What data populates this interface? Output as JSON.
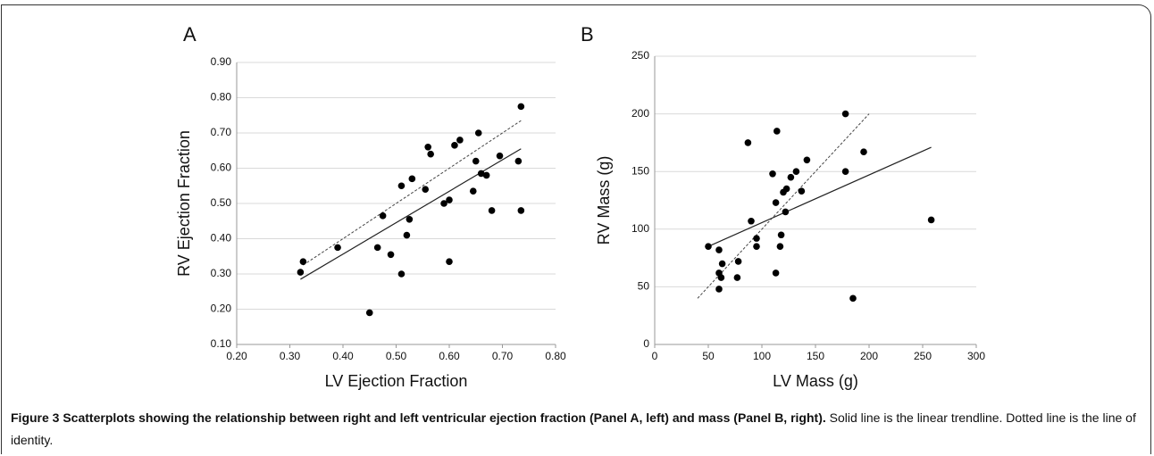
{
  "chart_data": [
    {
      "type": "scatter",
      "title": "A",
      "x_label": "LV Ejection Fraction",
      "y_label": "RV Ejection Fraction",
      "color": "#000000",
      "grid": true,
      "x": [
        0.32,
        0.325,
        0.39,
        0.45,
        0.465,
        0.475,
        0.49,
        0.51,
        0.51,
        0.52,
        0.525,
        0.53,
        0.555,
        0.56,
        0.565,
        0.59,
        0.6,
        0.6,
        0.61,
        0.62,
        0.645,
        0.65,
        0.655,
        0.66,
        0.67,
        0.68,
        0.695,
        0.73,
        0.735,
        0.735
      ],
      "y": [
        0.305,
        0.335,
        0.375,
        0.19,
        0.375,
        0.465,
        0.355,
        0.55,
        0.3,
        0.41,
        0.455,
        0.57,
        0.54,
        0.66,
        0.64,
        0.5,
        0.51,
        0.335,
        0.665,
        0.68,
        0.535,
        0.62,
        0.7,
        0.585,
        0.58,
        0.48,
        0.635,
        0.62,
        0.775,
        0.48
      ],
      "lines": [
        {
          "style": "solid",
          "x": [
            0.32,
            0.735
          ],
          "y": [
            0.285,
            0.655
          ]
        },
        {
          "style": "dotted",
          "x": [
            0.325,
            0.735
          ],
          "y": [
            0.325,
            0.735
          ]
        }
      ],
      "xlim": [
        0.2,
        0.8
      ],
      "xticks": [
        {
          "value": 0.2,
          "label": "0.20"
        },
        {
          "value": 0.3,
          "label": "0.30"
        },
        {
          "value": 0.4,
          "label": "0.40"
        },
        {
          "value": 0.5,
          "label": "0.50"
        },
        {
          "value": 0.6,
          "label": "0.60"
        },
        {
          "value": 0.7,
          "label": "0.70"
        },
        {
          "value": 0.8,
          "label": "0.80"
        }
      ],
      "ylim": [
        0.1,
        0.9
      ],
      "yticks": [
        {
          "value": 0.1,
          "label": "0.10"
        },
        {
          "value": 0.2,
          "label": "0.20"
        },
        {
          "value": 0.3,
          "label": "0.30"
        },
        {
          "value": 0.4,
          "label": "0.40"
        },
        {
          "value": 0.5,
          "label": "0.50"
        },
        {
          "value": 0.6,
          "label": "0.60"
        },
        {
          "value": 0.7,
          "label": "0.70"
        },
        {
          "value": 0.8,
          "label": "0.80"
        },
        {
          "value": 0.9,
          "label": "0.90"
        }
      ]
    },
    {
      "type": "scatter",
      "title": "B",
      "x_label": "LV Mass (g)",
      "y_label": "RV Mass (g)",
      "color": "#000000",
      "grid": true,
      "x": [
        50,
        60,
        60,
        60,
        62,
        63,
        77,
        78,
        87,
        90,
        95,
        95,
        110,
        113,
        113,
        114,
        117,
        118,
        120,
        122,
        123,
        127,
        132,
        137,
        142,
        178,
        178,
        185,
        195,
        258
      ],
      "y": [
        85,
        82,
        62,
        48,
        58,
        70,
        58,
        72,
        175,
        107,
        92,
        85,
        148,
        123,
        62,
        185,
        85,
        95,
        132,
        115,
        135,
        145,
        150,
        133,
        160,
        200,
        150,
        40,
        167,
        108
      ],
      "lines": [
        {
          "style": "solid",
          "x": [
            50,
            258
          ],
          "y": [
            85,
            171
          ]
        },
        {
          "style": "dotted",
          "x": [
            40,
            200
          ],
          "y": [
            40,
            200
          ]
        }
      ],
      "xlim": [
        0,
        300
      ],
      "xticks": [
        0,
        50,
        100,
        150,
        200,
        250,
        300
      ],
      "ylim": [
        0,
        250
      ],
      "yticks": [
        0,
        50,
        100,
        150,
        200,
        250
      ]
    }
  ],
  "caption": {
    "heading": "Figure 3 Scatterplots showing the relationship between right and left ventricular ejection fraction (Panel A, left) and mass (Panel B, right).",
    "text": "Solid line is the linear trendline. Dotted line is the line of identity."
  }
}
